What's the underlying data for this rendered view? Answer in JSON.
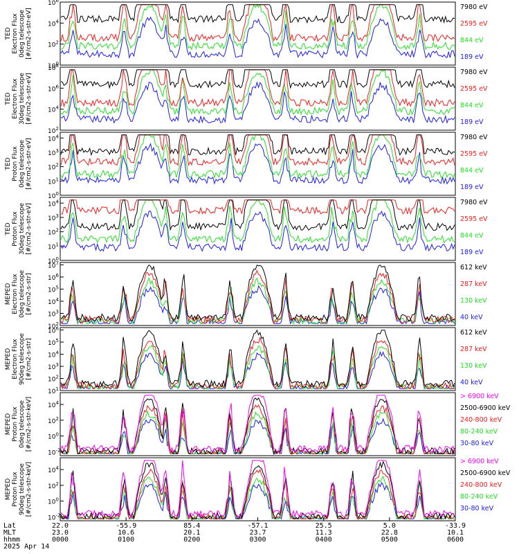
{
  "chart_data": {
    "type": "line",
    "colors": {
      "blue": "#1a1aff",
      "red": "#ff1a1a",
      "green": "#22e622",
      "black": "#000000",
      "magenta": "#ff00ff"
    },
    "x_axis": {
      "row_labels": [
        "Lat",
        "MLT",
        "hhmm",
        "2025 Apr 14"
      ],
      "ticks": [
        {
          "lat": "22.0",
          "mlt": "23.0",
          "time": "0000"
        },
        {
          "lat": "-55.9",
          "mlt": "10.6",
          "time": "0100"
        },
        {
          "lat": "85.4",
          "mlt": "20.1",
          "time": "0200"
        },
        {
          "lat": "-57.1",
          "mlt": "23.7",
          "time": "0300"
        },
        {
          "lat": "25.5",
          "mlt": "11.3",
          "time": "0400"
        },
        {
          "lat": "5.0",
          "mlt": "22.8",
          "time": "0500"
        },
        {
          "lat": "-33.9",
          "mlt": "10.1",
          "time": "0600"
        }
      ]
    },
    "panels": [
      {
        "ylabel": [
          "TED",
          "Electron Flux",
          "0deg telescope",
          "[#/cm2-s-str-eV]"
        ],
        "y_ticks": [
          {
            "base": "10",
            "exp": "0"
          },
          {
            "base": "10",
            "exp": "2"
          },
          {
            "base": "10",
            "exp": "4"
          },
          {
            "base": "10",
            "exp": "6"
          }
        ],
        "ylog_range": [
          0,
          6
        ],
        "legend": [
          {
            "label": "7980 eV",
            "color": "black"
          },
          {
            "label": "2595 eV",
            "color": "red"
          },
          {
            "label": "844 eV",
            "color": "green"
          },
          {
            "label": "189 eV",
            "color": "blue"
          }
        ],
        "kind": "ted_e"
      },
      {
        "ylabel": [
          "TED",
          "Electron Flux",
          "30deg telescope",
          "[#/cm2-s-str-eV]"
        ],
        "y_ticks": [
          {
            "base": "10",
            "exp": "2"
          },
          {
            "base": "10",
            "exp": "4"
          },
          {
            "base": "10",
            "exp": "6"
          },
          {
            "base": "10",
            "exp": "8"
          }
        ],
        "ylog_range": [
          2,
          8
        ],
        "legend": [
          {
            "label": "7980 eV",
            "color": "black"
          },
          {
            "label": "2595 eV",
            "color": "red"
          },
          {
            "label": "844 eV",
            "color": "green"
          },
          {
            "label": "189 eV",
            "color": "blue"
          }
        ],
        "kind": "ted_e"
      },
      {
        "ylabel": [
          "TED",
          "Proton Flux",
          "0deg telescope",
          "[#/cm2-s-str-eV]"
        ],
        "y_ticks": [
          {
            "base": "10",
            "exp": "0"
          },
          {
            "base": "10",
            "exp": "1"
          },
          {
            "base": "10",
            "exp": "2"
          },
          {
            "base": "10",
            "exp": "3"
          },
          {
            "base": "10",
            "exp": "4"
          }
        ],
        "ylog_range": [
          0,
          4.4
        ],
        "legend": [
          {
            "label": "7980 eV",
            "color": "black"
          },
          {
            "label": "2595 eV",
            "color": "red"
          },
          {
            "label": "844 eV",
            "color": "green"
          },
          {
            "label": "189 eV",
            "color": "blue"
          }
        ],
        "kind": "ted_p"
      },
      {
        "ylabel": [
          "TED",
          "Proton Flux",
          "30deg telescope",
          "[#/cm2-s-str-eV]"
        ],
        "y_ticks": [
          {
            "base": "10",
            "exp": "0"
          },
          {
            "base": "10",
            "exp": "1"
          },
          {
            "base": "10",
            "exp": "2"
          },
          {
            "base": "10",
            "exp": "3"
          },
          {
            "base": "10",
            "exp": "4"
          }
        ],
        "ylog_range": [
          0,
          4.4
        ],
        "legend": [
          {
            "label": "7980 eV",
            "color": "black"
          },
          {
            "label": "2595 eV",
            "color": "red"
          },
          {
            "label": "844 eV",
            "color": "green"
          },
          {
            "label": "189 eV",
            "color": "blue"
          }
        ],
        "kind": "ted_p2"
      },
      {
        "ylabel": [
          "MEPED",
          "Electron Flux",
          "0deg telescope",
          "[#/cm2-s-str]"
        ],
        "y_ticks": [
          {
            "base": "10",
            "exp": "2"
          },
          {
            "base": "10",
            "exp": "3"
          },
          {
            "base": "10",
            "exp": "4"
          },
          {
            "base": "10",
            "exp": "5"
          },
          {
            "base": "10",
            "exp": "6"
          },
          {
            "base": "10",
            "exp": "7"
          }
        ],
        "ylog_range": [
          2,
          7.2
        ],
        "legend": [
          {
            "label": "612 keV",
            "color": "black"
          },
          {
            "label": "287 keV",
            "color": "red"
          },
          {
            "label": "130 keV",
            "color": "green"
          },
          {
            "label": "40 keV",
            "color": "blue"
          }
        ],
        "kind": "mep_e0"
      },
      {
        "ylabel": [
          "MEPED",
          "Electron Flux",
          "90deg telescope",
          "[#/cm2-s-str]"
        ],
        "y_ticks": [
          {
            "base": "10",
            "exp": "1"
          },
          {
            "base": "10",
            "exp": "2"
          },
          {
            "base": "10",
            "exp": "3"
          },
          {
            "base": "10",
            "exp": "4"
          },
          {
            "base": "10",
            "exp": "5"
          },
          {
            "base": "10",
            "exp": "6"
          }
        ],
        "ylog_range": [
          1,
          6.2
        ],
        "legend": [
          {
            "label": "612 keV",
            "color": "black"
          },
          {
            "label": "287 keV",
            "color": "red"
          },
          {
            "label": "130 keV",
            "color": "green"
          },
          {
            "label": "40 keV",
            "color": "blue"
          }
        ],
        "kind": "mep_e90"
      },
      {
        "ylabel": [
          "MEPED",
          "Proton Flux",
          "0deg telescope",
          "[#/cm2-s-str-keV]"
        ],
        "y_ticks": [
          {
            "base": "10",
            "exp": "-2"
          },
          {
            "base": "10",
            "exp": "0"
          },
          {
            "base": "10",
            "exp": "2"
          },
          {
            "base": "10",
            "exp": "4"
          }
        ],
        "ylog_range": [
          -2.5,
          5.5
        ],
        "legend": [
          {
            "label": "> 6900 keV",
            "color": "magenta"
          },
          {
            "label": "2500-6900 keV",
            "color": "black"
          },
          {
            "label": "240-800 keV",
            "color": "red"
          },
          {
            "label": "80-240 keV",
            "color": "green"
          },
          {
            "label": "30-80 keV",
            "color": "blue"
          }
        ],
        "kind": "mep_p0"
      },
      {
        "ylabel": [
          "MEPED",
          "Proton Flux",
          "90deg telescope",
          "[#/cm2-s-str-keV]"
        ],
        "y_ticks": [
          {
            "base": "10",
            "exp": "-2"
          },
          {
            "base": "10",
            "exp": "0"
          },
          {
            "base": "10",
            "exp": "2"
          },
          {
            "base": "10",
            "exp": "4"
          }
        ],
        "ylog_range": [
          -2.5,
          5.5
        ],
        "legend": [
          {
            "label": "> 6900 keV",
            "color": "magenta"
          },
          {
            "label": "2500-6900 keV",
            "color": "black"
          },
          {
            "label": "240-800 keV",
            "color": "red"
          },
          {
            "label": "80-240 keV",
            "color": "green"
          },
          {
            "label": "30-80 keV",
            "color": "blue"
          }
        ],
        "kind": "mep_p90"
      }
    ]
  }
}
